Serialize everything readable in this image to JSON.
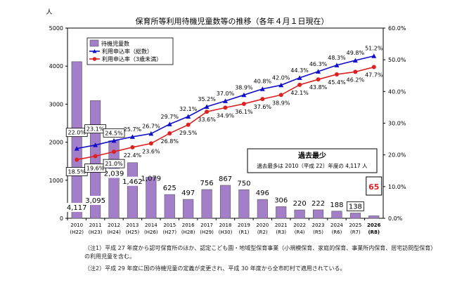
{
  "chart_data": {
    "type": "bar",
    "title": "保育所等利用待機児童数等の推移（各年４月１日現在）",
    "ylabel_left": "人",
    "ylim_left": [
      0,
      5000
    ],
    "yticks_left": [
      "0",
      "1000",
      "2000",
      "3000",
      "4000",
      "5000"
    ],
    "ylim_right": [
      0,
      60
    ],
    "yticks_right": [
      "0.0%",
      "10.0%",
      "20.0%",
      "30.0%",
      "40.0%",
      "50.0%",
      "60.0%"
    ],
    "categories": [
      "2010",
      "2011",
      "2012",
      "2013",
      "2014",
      "2015",
      "2016",
      "2017",
      "2018",
      "2019",
      "2020",
      "2021",
      "2022",
      "2023",
      "2024",
      "2025",
      "2026"
    ],
    "categories_sub": [
      "(H22)",
      "(H23)",
      "(H24)",
      "(H25)",
      "(H26)",
      "(H27)",
      "(H28)",
      "(H29)",
      "(H30)",
      "(R1)",
      "(R2)",
      "(R3)",
      "(R4)",
      "(R5)",
      "(R6)",
      "(R7)",
      "(R8)"
    ],
    "bar_series": {
      "name": "待機児童数",
      "values": [
        4117,
        3095,
        2039,
        1462,
        1079,
        625,
        497,
        756,
        867,
        750,
        496,
        306,
        220,
        222,
        188,
        138,
        65
      ],
      "labels": [
        "4,117",
        "3,095",
        "2,039",
        "1,462",
        "1,079",
        "625",
        "497",
        "756",
        "867",
        "750",
        "496",
        "306",
        "220",
        "222",
        "188",
        "138",
        "65"
      ],
      "color": "#a47fc9"
    },
    "line_series": [
      {
        "name": "利用申込率（総数）",
        "values": [
          22.0,
          23.1,
          24.5,
          25.7,
          26.7,
          29.7,
          32.1,
          35.2,
          37.0,
          38.9,
          40.8,
          42.0,
          44.3,
          46.3,
          48.3,
          49.8,
          51.2
        ],
        "labels": [
          "22.0%",
          "23.1%",
          "24.5%",
          "25.7%",
          "26.7%",
          "29.7%",
          "32.1%",
          "35.2%",
          "37.0%",
          "38.9%",
          "40.8%",
          "42.0%",
          "44.3%",
          "46.3%",
          "48.3%",
          "49.8%",
          "51.2%"
        ],
        "color": "#1010cc",
        "marker": "triangle"
      },
      {
        "name": "利用申込率（3歳未満）",
        "values": [
          18.5,
          19.6,
          21.0,
          22.4,
          23.6,
          26.8,
          29.5,
          33.6,
          34.9,
          36.1,
          37.6,
          38.9,
          42.1,
          43.8,
          45.4,
          46.2,
          47.7
        ],
        "labels": [
          "18.5%",
          "19.6%",
          "21.0%",
          "22.4%",
          "23.6%",
          "26.8%",
          "29.5%",
          "33.6%",
          "34.9%",
          "36.1%",
          "37.6%",
          "38.9%",
          "42.1%",
          "43.8%",
          "45.4%",
          "46.2%",
          "47.7%"
        ],
        "color": "#e02020",
        "marker": "circle"
      }
    ],
    "legend_position": "top-left",
    "callout": {
      "title": "過去最少",
      "text": "過去最多は 2010（平成 22）年度の 4,117 人",
      "target_label": "65",
      "target_color": "#e02020"
    },
    "grid": false
  },
  "notes": [
    "（注1）平成 27 年度から認可保育所のほか、認定こども園・地域型保育事業（小規模保育、家庭的保育、事業所内保育、居宅訪問型保育）の利用児童を含む。",
    "（注2）平成 29 年度に国の待機児童の定義が変更され、平成 30 年度から全市町村で適用されている。"
  ]
}
